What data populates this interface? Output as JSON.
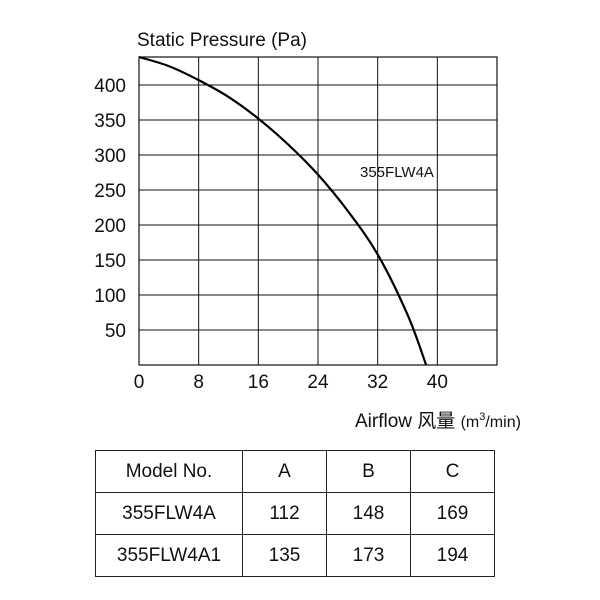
{
  "chart_data": {
    "type": "line",
    "ylabel": "Static Pressure (Pa)",
    "xlabel": "Airflow 风量",
    "xlabel_unit_prefix": "(m",
    "xlabel_unit_sup": "3",
    "xlabel_unit_suffix": "/min)",
    "x_ticks": [
      0,
      8,
      16,
      24,
      32,
      40
    ],
    "y_ticks": [
      50,
      100,
      150,
      200,
      250,
      300,
      350,
      400
    ],
    "xlim": [
      0,
      48
    ],
    "ylim": [
      0,
      440
    ],
    "grid": true,
    "series": [
      {
        "name": "355FLW4A",
        "x": [
          0,
          4,
          8,
          12,
          16,
          20,
          24,
          28,
          32,
          36,
          38.5
        ],
        "y": [
          440,
          427,
          407,
          383,
          352,
          315,
          272,
          220,
          158,
          72,
          0
        ]
      }
    ]
  },
  "table": {
    "headers": [
      "Model No.",
      "A",
      "B",
      "C"
    ],
    "rows": [
      [
        "355FLW4A",
        "112",
        "148",
        "169"
      ],
      [
        "355FLW4A1",
        "135",
        "173",
        "194"
      ]
    ]
  }
}
